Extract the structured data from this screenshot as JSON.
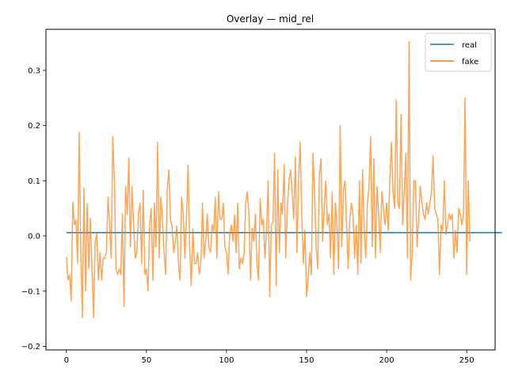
{
  "chart_data": {
    "type": "line",
    "title": "Overlay — mid_rel",
    "xlabel": "",
    "ylabel": "",
    "xlim": [
      -12.75,
      267.75
    ],
    "ylim": [
      -0.2065,
      0.3745
    ],
    "xticks": [
      0,
      50,
      100,
      150,
      200,
      250
    ],
    "yticks": [
      -0.2,
      -0.1,
      0.0,
      0.1,
      0.2,
      0.3
    ],
    "ytick_labels": [
      "−0.2",
      "−0.1",
      "0.0",
      "0.1",
      "0.2",
      "0.3"
    ],
    "grid": false,
    "legend_position": "top-right",
    "series": [
      {
        "name": "real",
        "color": "#1f77b4",
        "x_start": 0,
        "values": [
          0.006,
          0.006,
          0.006,
          0.006,
          0.006,
          0.006,
          0.006,
          0.006,
          0.006,
          0.006,
          0.006,
          0.006,
          0.006,
          0.006,
          0.006,
          0.006,
          0.006,
          0.006,
          0.006,
          0.006,
          0.006,
          0.006,
          0.006,
          0.006,
          0.006,
          0.006,
          0.006,
          0.006,
          0.006,
          0.006,
          0.006,
          0.006,
          0.006,
          0.006,
          0.006,
          0.006,
          0.006,
          0.006,
          0.006,
          0.006,
          0.006,
          0.006,
          0.006,
          0.006,
          0.006,
          0.006,
          0.006,
          0.006,
          0.006,
          0.006,
          0.006,
          0.006,
          0.006,
          0.006,
          0.006,
          0.006,
          0.006,
          0.006,
          0.006,
          0.006,
          0.006,
          0.006,
          0.006,
          0.006,
          0.006,
          0.006,
          0.006,
          0.006,
          0.006,
          0.006,
          0.006,
          0.006,
          0.006,
          0.006,
          0.006,
          0.006,
          0.006,
          0.006,
          0.006,
          0.006,
          0.006,
          0.006,
          0.006,
          0.006,
          0.006,
          0.006,
          0.006,
          0.006,
          0.006,
          0.006,
          0.006,
          0.006,
          0.006,
          0.006,
          0.006,
          0.006,
          0.006,
          0.006,
          0.006,
          0.006,
          0.006,
          0.006,
          0.006,
          0.006,
          0.006,
          0.006,
          0.006,
          0.006,
          0.006,
          0.006,
          0.006,
          0.006,
          0.006,
          0.006,
          0.006,
          0.006,
          0.006,
          0.006,
          0.006,
          0.006,
          0.006,
          0.006,
          0.006,
          0.006,
          0.006,
          0.006,
          0.006,
          0.006,
          0.006,
          0.006,
          0.006,
          0.006,
          0.006,
          0.006,
          0.006,
          0.006,
          0.006,
          0.006,
          0.006,
          0.006,
          0.006,
          0.006,
          0.006,
          0.006,
          0.006,
          0.006,
          0.006,
          0.006,
          0.006,
          0.006,
          0.006,
          0.006,
          0.006,
          0.006,
          0.006,
          0.006,
          0.006,
          0.006,
          0.006,
          0.006,
          0.006,
          0.006,
          0.006,
          0.006,
          0.006,
          0.006,
          0.006,
          0.006,
          0.006,
          0.006,
          0.006,
          0.006,
          0.006,
          0.006,
          0.006,
          0.006,
          0.006,
          0.006,
          0.006,
          0.006,
          0.006,
          0.006,
          0.006,
          0.006,
          0.006,
          0.006,
          0.006,
          0.006,
          0.006,
          0.006,
          0.006,
          0.006,
          0.006,
          0.006,
          0.006,
          0.006,
          0.006,
          0.006,
          0.006,
          0.006,
          0.006,
          0.006,
          0.006,
          0.006,
          0.006,
          0.006,
          0.006,
          0.006,
          0.006,
          0.006,
          0.006,
          0.006,
          0.006,
          0.006,
          0.006,
          0.006,
          0.006,
          0.006,
          0.006,
          0.006,
          0.006,
          0.006,
          0.006,
          0.006,
          0.006,
          0.006,
          0.006,
          0.006,
          0.006,
          0.006,
          0.006,
          0.006,
          0.006,
          0.006,
          0.006,
          0.006,
          0.006,
          0.006,
          0.006,
          0.006,
          0.006,
          0.006,
          0.006,
          0.006,
          0.006,
          0.006,
          0.006,
          0.006,
          0.006,
          0.006,
          0.006,
          0.006,
          0.006,
          0.006,
          0.006,
          0.006,
          0.006,
          0.006,
          0.006,
          0.006,
          0.006,
          0.006,
          0.006,
          0.006,
          0.006,
          0.006,
          0.006,
          0.006,
          0.006,
          0.006,
          0.006,
          0.006,
          0.006
        ]
      },
      {
        "name": "fake",
        "color": "#ff7f0e",
        "x_start": 0,
        "values": [
          -0.038,
          -0.08,
          -0.07,
          -0.118,
          0.061,
          0.02,
          0.029,
          -0.05,
          0.188,
          -0.03,
          -0.148,
          0.087,
          -0.1,
          0.058,
          -0.06,
          0.032,
          -0.06,
          -0.148,
          -0.01,
          0.004,
          -0.08,
          -0.03,
          -0.08,
          -0.04,
          -0.04,
          -0.03,
          0.07,
          0.02,
          -0.04,
          0.18,
          0.1,
          -0.06,
          -0.07,
          -0.06,
          -0.07,
          0.04,
          -0.128,
          0.09,
          0.04,
          0.141,
          -0.02,
          0.09,
          0.02,
          -0.04,
          -0.03,
          0.04,
          0.059,
          -0.05,
          0.083,
          -0.07,
          -0.06,
          -0.1,
          0.022,
          0.05,
          -0.08,
          0.059,
          -0.02,
          0.17,
          -0.04,
          0.07,
          0.03,
          -0.03,
          -0.07,
          0.085,
          0.12,
          0.03,
          0.017,
          -0.03,
          -0.01,
          0.018,
          -0.05,
          -0.08,
          0.07,
          0.04,
          -0.04,
          0.03,
          0.129,
          -0.02,
          -0.09,
          0.013,
          -0.05,
          -0.05,
          -0.03,
          -0.07,
          -0.05,
          0.06,
          -0.04,
          -0.01,
          0.04,
          -0.02,
          -0.03,
          0.021,
          0.007,
          0.07,
          -0.04,
          0.08,
          0.03,
          0.03,
          0.06,
          -0.02,
          -0.03,
          -0.07,
          0.003,
          0.02,
          -0.01,
          0.038,
          -0.03,
          0.059,
          -0.06,
          -0.04,
          -0.05,
          -0.03,
          0.06,
          0.08,
          0.04,
          -0.08,
          0.014,
          -0.01,
          0.04,
          -0.05,
          -0.08,
          0.068,
          0.02,
          0.03,
          -0.04,
          0.01,
          0.1,
          -0.11,
          0.021,
          0.024,
          0.15,
          -0.09,
          0.12,
          -0.03,
          0.06,
          0.04,
          0.13,
          -0.04,
          0.05,
          0.1,
          0.12,
          0.08,
          0.03,
          0.143,
          -0.03,
          0.1,
          0.17,
          0.04,
          -0.05,
          0.01,
          -0.11,
          -0.08,
          -0.03,
          -0.07,
          0.15,
          0.08,
          -0.02,
          -0.06,
          0.11,
          0.14,
          -0.01,
          0.05,
          0.1,
          0.02,
          0.04,
          -0.04,
          0.08,
          -0.07,
          0.06,
          0.02,
          -0.06,
          0.2,
          -0.02,
          0.08,
          0.1,
          0.02,
          -0.06,
          0.03,
          0.06,
          0.04,
          -0.04,
          0.02,
          -0.07,
          0.1,
          -0.05,
          0.12,
          0.01,
          -0.04,
          0.06,
          0.09,
          0.18,
          -0.02,
          0.14,
          -0.04,
          0.09,
          0.04,
          -0.03,
          0.08,
          0.05,
          0.02,
          0.06,
          0.01,
          0.1,
          0.17,
          0.08,
          0.05,
          0.247,
          0.06,
          0.05,
          0.22,
          0.02,
          0.08,
          0.15,
          -0.04,
          0.352,
          -0.08,
          -0.03,
          0.1,
          0.1,
          -0.02,
          0.03,
          0.09,
          0.06,
          0.04,
          0.03,
          0.06,
          0.04,
          0.06,
          0.08,
          0.145,
          0.05,
          0.04,
          0.03,
          -0.07,
          0.02,
          0.01,
          0.1,
          0.003,
          0.02,
          0.04,
          0.03,
          0.04,
          -0.04,
          0.01,
          -0.03,
          0.05,
          0.04,
          0.02,
          0.04,
          0.25,
          -0.07,
          0.1,
          -0.01
        ]
      }
    ]
  }
}
